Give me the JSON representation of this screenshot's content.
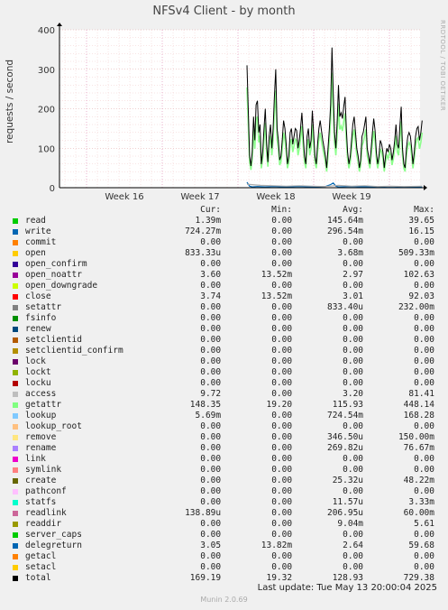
{
  "header": {
    "title": "NFSv4 Client - by month",
    "side_label": "RRDTOOL / TOBI OETIKER"
  },
  "chart_data": {
    "type": "line",
    "title": "NFSv4 Client - by month",
    "ylabel": "requests / second",
    "ylim": [
      0,
      400
    ],
    "y_ticks": [
      0,
      100,
      200,
      300,
      400
    ],
    "x_tick_labels": [
      "Week 16",
      "Week 17",
      "Week 18",
      "Week 19"
    ],
    "grid": true,
    "series": [
      {
        "name": "total",
        "color": "#000000",
        "values": [
          [
            0,
            310
          ],
          [
            1,
            200
          ],
          [
            2,
            80
          ],
          [
            3,
            55
          ],
          [
            4,
            90
          ],
          [
            5,
            180
          ],
          [
            6,
            120
          ],
          [
            7,
            210
          ],
          [
            8,
            220
          ],
          [
            9,
            140
          ],
          [
            10,
            160
          ],
          [
            11,
            60
          ],
          [
            12,
            90
          ],
          [
            13,
            150
          ],
          [
            14,
            200
          ],
          [
            15,
            110
          ],
          [
            16,
            65
          ],
          [
            17,
            130
          ],
          [
            18,
            160
          ],
          [
            19,
            100
          ],
          [
            20,
            150
          ],
          [
            21,
            230
          ],
          [
            22,
            300
          ],
          [
            23,
            150
          ],
          [
            24,
            120
          ],
          [
            25,
            70
          ],
          [
            26,
            80
          ],
          [
            27,
            120
          ],
          [
            28,
            170
          ],
          [
            29,
            150
          ],
          [
            30,
            110
          ],
          [
            31,
            60
          ],
          [
            32,
            80
          ],
          [
            33,
            140
          ],
          [
            34,
            150
          ],
          [
            35,
            110
          ],
          [
            36,
            130
          ],
          [
            37,
            150
          ],
          [
            38,
            145
          ],
          [
            39,
            100
          ],
          [
            40,
            120
          ],
          [
            41,
            150
          ],
          [
            42,
            190
          ],
          [
            43,
            130
          ],
          [
            44,
            80
          ],
          [
            45,
            60
          ],
          [
            46,
            130
          ],
          [
            47,
            150
          ],
          [
            48,
            100
          ],
          [
            49,
            120
          ],
          [
            50,
            195
          ],
          [
            51,
            140
          ],
          [
            52,
            80
          ],
          [
            53,
            60
          ],
          [
            54,
            110
          ],
          [
            55,
            150
          ],
          [
            56,
            170
          ],
          [
            57,
            145
          ],
          [
            58,
            120
          ],
          [
            59,
            100
          ],
          [
            60,
            80
          ],
          [
            61,
            50
          ],
          [
            62,
            100
          ],
          [
            63,
            150
          ],
          [
            64,
            210
          ],
          [
            65,
            355
          ],
          [
            66,
            240
          ],
          [
            67,
            140
          ],
          [
            68,
            100
          ],
          [
            69,
            170
          ],
          [
            70,
            260
          ],
          [
            71,
            180
          ],
          [
            72,
            190
          ],
          [
            73,
            175
          ],
          [
            74,
            205
          ],
          [
            75,
            230
          ],
          [
            76,
            150
          ],
          [
            77,
            90
          ],
          [
            78,
            60
          ],
          [
            79,
            80
          ],
          [
            80,
            120
          ],
          [
            81,
            160
          ],
          [
            82,
            180
          ],
          [
            83,
            140
          ],
          [
            84,
            100
          ],
          [
            85,
            80
          ],
          [
            86,
            50
          ],
          [
            87,
            70
          ],
          [
            88,
            130
          ],
          [
            89,
            140
          ],
          [
            90,
            160
          ],
          [
            91,
            180
          ],
          [
            92,
            100
          ],
          [
            93,
            80
          ],
          [
            94,
            60
          ],
          [
            95,
            100
          ],
          [
            96,
            140
          ],
          [
            97,
            175
          ],
          [
            98,
            145
          ],
          [
            99,
            90
          ],
          [
            100,
            60
          ],
          [
            101,
            80
          ],
          [
            102,
            120
          ],
          [
            103,
            110
          ],
          [
            104,
            90
          ],
          [
            105,
            50
          ],
          [
            106,
            80
          ],
          [
            107,
            100
          ],
          [
            108,
            90
          ],
          [
            109,
            110
          ],
          [
            110,
            100
          ],
          [
            111,
            70
          ],
          [
            112,
            90
          ],
          [
            113,
            120
          ],
          [
            114,
            160
          ],
          [
            115,
            110
          ],
          [
            116,
            100
          ],
          [
            117,
            155
          ],
          [
            118,
            205
          ],
          [
            119,
            100
          ],
          [
            120,
            60
          ],
          [
            121,
            50
          ],
          [
            122,
            100
          ],
          [
            123,
            130
          ],
          [
            124,
            140
          ],
          [
            125,
            130
          ],
          [
            126,
            100
          ],
          [
            127,
            60
          ],
          [
            128,
            90
          ],
          [
            129,
            130
          ],
          [
            130,
            150
          ],
          [
            131,
            155
          ],
          [
            132,
            120
          ],
          [
            133,
            140
          ],
          [
            134,
            170
          ]
        ]
      },
      {
        "name": "access",
        "color": "#aaaaaa",
        "values": [
          [
            0,
            9
          ],
          [
            10,
            6
          ],
          [
            20,
            5
          ],
          [
            30,
            4
          ],
          [
            40,
            5
          ],
          [
            50,
            4
          ],
          [
            60,
            3
          ],
          [
            70,
            6
          ],
          [
            80,
            4
          ],
          [
            90,
            5
          ],
          [
            100,
            3
          ],
          [
            110,
            4
          ],
          [
            120,
            3
          ],
          [
            134,
            4
          ]
        ]
      },
      {
        "name": "write",
        "color": "#0066b3",
        "values": [
          [
            0,
            14
          ],
          [
            2,
            4
          ],
          [
            4,
            2
          ],
          [
            8,
            3
          ],
          [
            14,
            2
          ],
          [
            20,
            3
          ],
          [
            30,
            2
          ],
          [
            40,
            3
          ],
          [
            50,
            2
          ],
          [
            60,
            3
          ],
          [
            64,
            8
          ],
          [
            66,
            12
          ],
          [
            68,
            4
          ],
          [
            70,
            2
          ],
          [
            80,
            3
          ],
          [
            90,
            2
          ],
          [
            100,
            2
          ],
          [
            110,
            3
          ],
          [
            120,
            2
          ],
          [
            134,
            2
          ]
        ]
      }
    ]
  },
  "legend": {
    "columns": [
      "Cur:",
      "Min:",
      "Avg:",
      "Max:"
    ],
    "rows": [
      {
        "name": "read",
        "color": "#00cc00",
        "cur": "1.39m",
        "min": "0.00",
        "avg": "145.64m",
        "max": "39.65"
      },
      {
        "name": "write",
        "color": "#0066b3",
        "cur": "724.27m",
        "min": "0.00",
        "avg": "296.54m",
        "max": "16.15"
      },
      {
        "name": "commit",
        "color": "#ff8000",
        "cur": "0.00",
        "min": "0.00",
        "avg": "0.00",
        "max": "0.00"
      },
      {
        "name": "open",
        "color": "#ffcc00",
        "cur": "833.33u",
        "min": "0.00",
        "avg": "3.68m",
        "max": "509.33m"
      },
      {
        "name": "open_confirm",
        "color": "#330099",
        "cur": "0.00",
        "min": "0.00",
        "avg": "0.00",
        "max": "0.00"
      },
      {
        "name": "open_noattr",
        "color": "#990099",
        "cur": "3.60",
        "min": "13.52m",
        "avg": "2.97",
        "max": "102.63"
      },
      {
        "name": "open_downgrade",
        "color": "#ccff00",
        "cur": "0.00",
        "min": "0.00",
        "avg": "0.00",
        "max": "0.00"
      },
      {
        "name": "close",
        "color": "#ff0000",
        "cur": "3.74",
        "min": "13.52m",
        "avg": "3.01",
        "max": "92.03"
      },
      {
        "name": "setattr",
        "color": "#808080",
        "cur": "0.00",
        "min": "0.00",
        "avg": "833.40u",
        "max": "232.00m"
      },
      {
        "name": "fsinfo",
        "color": "#008f00",
        "cur": "0.00",
        "min": "0.00",
        "avg": "0.00",
        "max": "0.00"
      },
      {
        "name": "renew",
        "color": "#00487d",
        "cur": "0.00",
        "min": "0.00",
        "avg": "0.00",
        "max": "0.00"
      },
      {
        "name": "setclientid",
        "color": "#b35a00",
        "cur": "0.00",
        "min": "0.00",
        "avg": "0.00",
        "max": "0.00"
      },
      {
        "name": "setclientid_confirm",
        "color": "#b38f00",
        "cur": "0.00",
        "min": "0.00",
        "avg": "0.00",
        "max": "0.00"
      },
      {
        "name": "lock",
        "color": "#6b006b",
        "cur": "0.00",
        "min": "0.00",
        "avg": "0.00",
        "max": "0.00"
      },
      {
        "name": "lockt",
        "color": "#8fb300",
        "cur": "0.00",
        "min": "0.00",
        "avg": "0.00",
        "max": "0.00"
      },
      {
        "name": "locku",
        "color": "#b30000",
        "cur": "0.00",
        "min": "0.00",
        "avg": "0.00",
        "max": "0.00"
      },
      {
        "name": "access",
        "color": "#bebebe",
        "cur": "9.72",
        "min": "0.00",
        "avg": "3.20",
        "max": "81.41"
      },
      {
        "name": "getattr",
        "color": "#80ff80",
        "cur": "148.35",
        "min": "19.20",
        "avg": "115.93",
        "max": "448.14"
      },
      {
        "name": "lookup",
        "color": "#80c9ff",
        "cur": "5.69m",
        "min": "0.00",
        "avg": "724.54m",
        "max": "168.28"
      },
      {
        "name": "lookup_root",
        "color": "#ffc080",
        "cur": "0.00",
        "min": "0.00",
        "avg": "0.00",
        "max": "0.00"
      },
      {
        "name": "remove",
        "color": "#ffe680",
        "cur": "0.00",
        "min": "0.00",
        "avg": "346.50u",
        "max": "150.00m"
      },
      {
        "name": "rename",
        "color": "#aa80ff",
        "cur": "0.00",
        "min": "0.00",
        "avg": "269.82u",
        "max": "76.67m"
      },
      {
        "name": "link",
        "color": "#ee00cc",
        "cur": "0.00",
        "min": "0.00",
        "avg": "0.00",
        "max": "0.00"
      },
      {
        "name": "symlink",
        "color": "#ff8080",
        "cur": "0.00",
        "min": "0.00",
        "avg": "0.00",
        "max": "0.00"
      },
      {
        "name": "create",
        "color": "#666600",
        "cur": "0.00",
        "min": "0.00",
        "avg": "25.32u",
        "max": "48.22m"
      },
      {
        "name": "pathconf",
        "color": "#ffbfff",
        "cur": "0.00",
        "min": "0.00",
        "avg": "0.00",
        "max": "0.00"
      },
      {
        "name": "statfs",
        "color": "#00ffcc",
        "cur": "0.00",
        "min": "0.00",
        "avg": "11.57u",
        "max": "3.33m"
      },
      {
        "name": "readlink",
        "color": "#cc6699",
        "cur": "138.89u",
        "min": "0.00",
        "avg": "206.95u",
        "max": "60.00m"
      },
      {
        "name": "readdir",
        "color": "#999900",
        "cur": "0.00",
        "min": "0.00",
        "avg": "9.04m",
        "max": "5.61"
      },
      {
        "name": "server_caps",
        "color": "#00cc00",
        "cur": "0.00",
        "min": "0.00",
        "avg": "0.00",
        "max": "0.00"
      },
      {
        "name": "delegreturn",
        "color": "#0066b3",
        "cur": "3.05",
        "min": "13.82m",
        "avg": "2.64",
        "max": "59.68"
      },
      {
        "name": "getacl",
        "color": "#ff8000",
        "cur": "0.00",
        "min": "0.00",
        "avg": "0.00",
        "max": "0.00"
      },
      {
        "name": "setacl",
        "color": "#ffcc00",
        "cur": "0.00",
        "min": "0.00",
        "avg": "0.00",
        "max": "0.00"
      },
      {
        "name": "total",
        "color": "#000000",
        "cur": "169.19",
        "min": "19.32",
        "avg": "128.93",
        "max": "729.38"
      }
    ]
  },
  "footer": {
    "last_update": "Last update: Tue May 13 20:00:04 2025",
    "version": "Munin 2.0.69"
  }
}
